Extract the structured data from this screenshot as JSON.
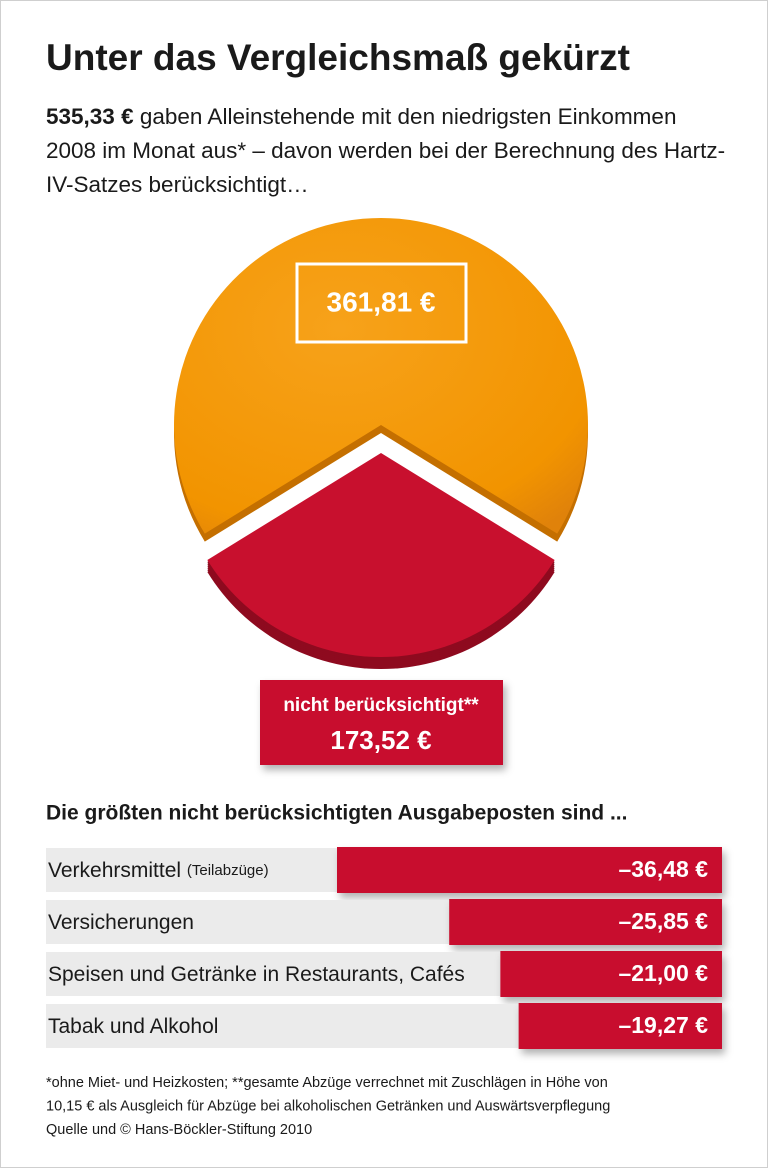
{
  "chart_data": [
    {
      "type": "pie",
      "title": "Unter das Vergleichsmaß gekürzt",
      "subtitle_lead": "535,33 €",
      "subtitle": "gaben Alleinstehende mit den niedrigsten Einkommen 2008 im Monat aus* – davon werden bei der Berechnung des Hartz-IV-Satzes berücksichtigt…",
      "categories": [
        null,
        "nicht berücksichtigt**"
      ],
      "values": [
        361.81,
        173.52
      ],
      "value_labels": [
        "361,81 €",
        "173,52 €"
      ],
      "colors": [
        "#f29400",
        "#c8102e"
      ]
    },
    {
      "type": "bar",
      "orientation": "horizontal",
      "title": "Die größten nicht berücksichtigten Ausgabeposten sind ...",
      "categories": [
        "Verkehrsmittel",
        "Versicherungen",
        "Speisen und Getränke in Restaurants, Cafés",
        "Tabak und Alkohol"
      ],
      "category_notes": [
        "(Teilabzüge)",
        null,
        null,
        null
      ],
      "values": [
        -36.48,
        -25.85,
        -21.0,
        -19.27
      ],
      "value_labels": [
        "–36,48 €",
        "–25,85 €",
        "–21,00 €",
        "–19,27 €"
      ],
      "color": "#c8102e",
      "footnote": [
        "*ohne Miet- und Heizkosten; **gesamte Abzüge verrechnet mit Zuschlägen in Höhe von",
        "10,15 € als Ausgleich für Abzüge bei alkoholischen Getränken und Auswärtsverpflegung",
        "Quelle und © Hans-Böckler-Stiftung 2010"
      ]
    }
  ]
}
